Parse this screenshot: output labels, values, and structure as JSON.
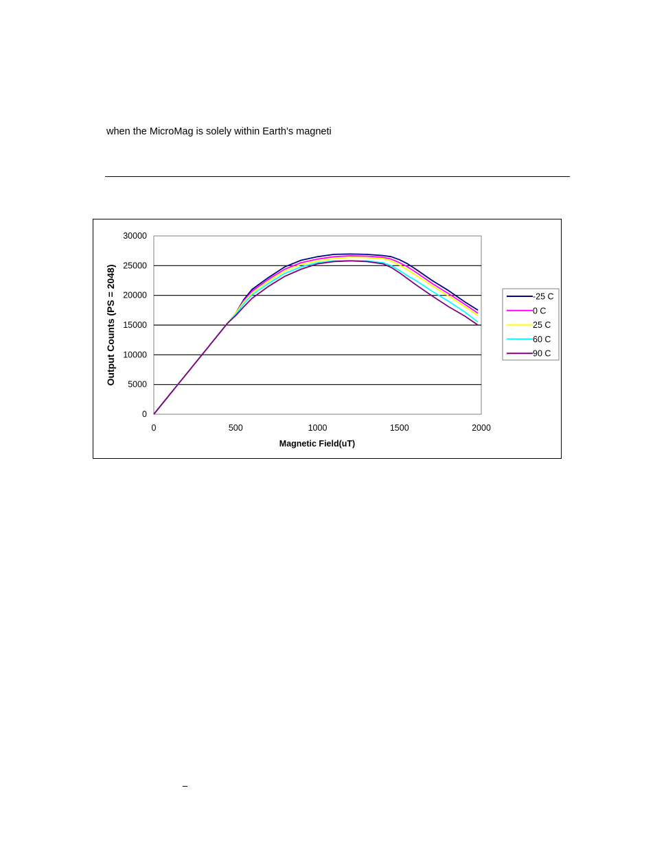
{
  "document": {
    "body_text": "when the MicroMag is solely within Earth’s magneti",
    "footer_mark": "–"
  },
  "chart_data": {
    "type": "line",
    "title": "",
    "xlabel": "Magnetic Field(uT)",
    "ylabel": "Output Counts (PS = 2048)",
    "xlim": [
      0,
      2000
    ],
    "ylim": [
      0,
      30000
    ],
    "xticks": [
      0,
      500,
      1000,
      1500,
      2000
    ],
    "yticks": [
      0,
      5000,
      10000,
      15000,
      20000,
      25000,
      30000
    ],
    "grid": "horizontal",
    "legend_position": "right",
    "x": [
      0,
      100,
      200,
      300,
      400,
      450,
      500,
      550,
      600,
      700,
      800,
      900,
      1000,
      1100,
      1200,
      1300,
      1400,
      1450,
      1500,
      1550,
      1600,
      1700,
      1800,
      1900,
      1980
    ],
    "series": [
      {
        "name": "-25 C",
        "color": "#000080",
        "values": [
          0,
          3400,
          6800,
          10200,
          13600,
          15300,
          17000,
          19300,
          21000,
          23000,
          24800,
          25900,
          26500,
          26900,
          26950,
          26900,
          26700,
          26500,
          26000,
          25300,
          24400,
          22500,
          20800,
          18900,
          17500
        ]
      },
      {
        "name": "0 C",
        "color": "#ff00ff",
        "values": [
          0,
          3400,
          6800,
          10200,
          13600,
          15300,
          17000,
          19100,
          20700,
          22700,
          24400,
          25500,
          26100,
          26500,
          26650,
          26600,
          26400,
          26100,
          25500,
          24800,
          23900,
          22000,
          20300,
          18500,
          17000
        ]
      },
      {
        "name": "25 C",
        "color": "#ffff00",
        "values": [
          0,
          3400,
          6800,
          10200,
          13600,
          15300,
          17000,
          18900,
          20400,
          22400,
          24100,
          25200,
          25800,
          26200,
          26400,
          26350,
          26200,
          25800,
          25100,
          24300,
          23400,
          21600,
          19900,
          18100,
          16600
        ]
      },
      {
        "name": "60 C",
        "color": "#00ffff",
        "values": [
          0,
          3400,
          6800,
          10200,
          13600,
          15300,
          16800,
          18600,
          20100,
          22000,
          23700,
          24800,
          25500,
          25800,
          25850,
          25800,
          25500,
          25000,
          24200,
          23300,
          22500,
          20700,
          19000,
          17200,
          15500
        ]
      },
      {
        "name": "90 C",
        "color": "#800080",
        "values": [
          0,
          3400,
          6800,
          10200,
          13600,
          15300,
          16600,
          18100,
          19500,
          21500,
          23200,
          24400,
          25300,
          25700,
          25800,
          25700,
          25300,
          24700,
          23800,
          22800,
          21800,
          19900,
          18100,
          16500,
          15000
        ]
      }
    ]
  }
}
